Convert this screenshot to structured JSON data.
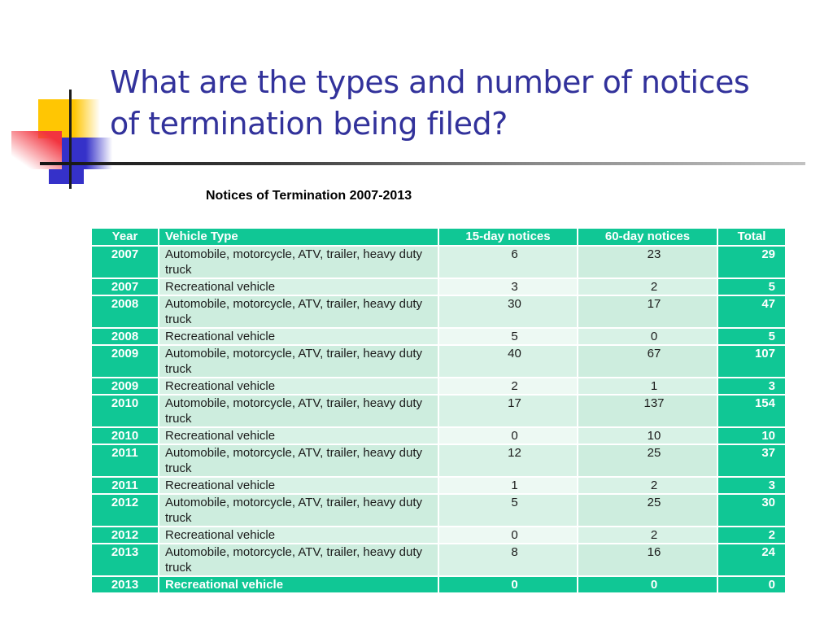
{
  "slide": {
    "title_line1": "What are the types and number of notices",
    "title_line2": "of termination being filed?",
    "table_title": "Notices of Termination 2007-2013"
  },
  "table": {
    "headers": [
      "Year",
      "Vehicle Type",
      "15-day notices",
      "60-day notices",
      "Total"
    ],
    "rows": [
      {
        "year": "2007",
        "vehicle": "Automobile, motorcycle, ATV, trailer, heavy duty truck",
        "d15": "6",
        "d60": "23",
        "total": "29"
      },
      {
        "year": "2007",
        "vehicle": "Recreational vehicle",
        "d15": "3",
        "d60": "2",
        "total": "5"
      },
      {
        "year": "2008",
        "vehicle": "Automobile, motorcycle, ATV, trailer, heavy duty truck",
        "d15": "30",
        "d60": "17",
        "total": "47"
      },
      {
        "year": "2008",
        "vehicle": "Recreational vehicle",
        "d15": "5",
        "d60": "0",
        "total": "5"
      },
      {
        "year": "2009",
        "vehicle": "Automobile, motorcycle, ATV, trailer, heavy duty truck",
        "d15": "40",
        "d60": "67",
        "total": "107"
      },
      {
        "year": "2009",
        "vehicle": "Recreational vehicle",
        "d15": "2",
        "d60": "1",
        "total": "3"
      },
      {
        "year": "2010",
        "vehicle": "Automobile, motorcycle, ATV, trailer, heavy duty truck",
        "d15": "17",
        "d60": "137",
        "total": "154"
      },
      {
        "year": "2010",
        "vehicle": "Recreational vehicle",
        "d15": "0",
        "d60": "10",
        "total": "10"
      },
      {
        "year": "2011",
        "vehicle": "Automobile, motorcycle, ATV, trailer, heavy duty truck",
        "d15": "12",
        "d60": "25",
        "total": "37"
      },
      {
        "year": "2011",
        "vehicle": "Recreational vehicle",
        "d15": "1",
        "d60": "2",
        "total": "3"
      },
      {
        "year": "2012",
        "vehicle": "Automobile, motorcycle, ATV, trailer, heavy duty truck",
        "d15": "5",
        "d60": "25",
        "total": "30"
      },
      {
        "year": "2012",
        "vehicle": "Recreational vehicle",
        "d15": "0",
        "d60": "2",
        "total": "2"
      },
      {
        "year": "2013",
        "vehicle": "Automobile, motorcycle, ATV, trailer, heavy duty truck",
        "d15": "8",
        "d60": "16",
        "total": "24"
      },
      {
        "year": "2013",
        "vehicle": "Recreational vehicle",
        "d15": "0",
        "d60": "0",
        "total": "0",
        "emphasis": true
      }
    ]
  },
  "colors": {
    "accent_teal": "#10C795",
    "band_dark": "#CDEDDE",
    "band_mid": "#D8F2E6",
    "band_light": "#EDF9F3",
    "title_indigo": "#32329B",
    "decor_yellow": "#FFC603",
    "decor_red": "#F2343F",
    "decor_blue": "#3531C9"
  }
}
